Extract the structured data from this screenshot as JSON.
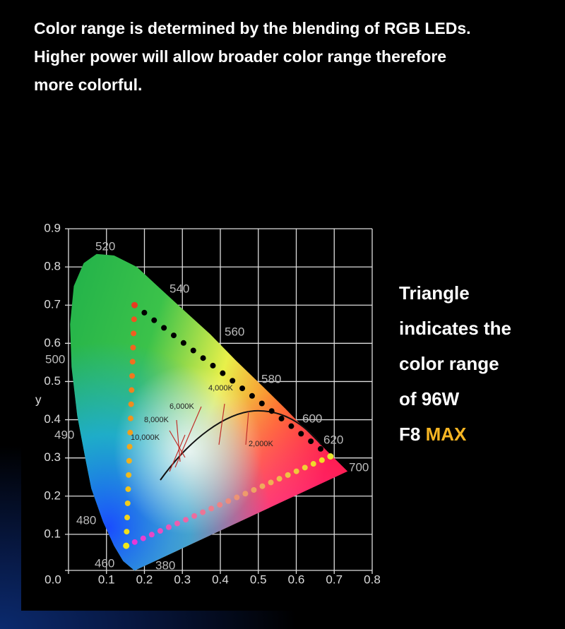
{
  "heading": [
    "Color range is determined by the blending of RGB LEDs.",
    "Higher power will allow broader color range therefore",
    "more colorful."
  ],
  "side_text": {
    "lines": [
      "Triangle",
      "indicates the",
      "color range",
      "of 96W"
    ],
    "model": "F8",
    "highlight": "MAX"
  },
  "chart_data": {
    "type": "scatter",
    "y_label": "y",
    "xlim": [
      0,
      0.8
    ],
    "ylim": [
      0,
      0.9
    ],
    "xticks": [
      {
        "value": 0,
        "label": "0.0"
      },
      0.1,
      0.2,
      0.3,
      0.4,
      0.5,
      0.6,
      0.7,
      0.8
    ],
    "yticks": [
      0.1,
      0.2,
      0.3,
      0.4,
      0.5,
      0.6,
      0.7,
      0.8,
      0.9
    ],
    "grid": true,
    "wavelength_labels": [
      "520",
      "540",
      "560",
      "580",
      "600",
      "620",
      "700",
      "500",
      "490",
      "480",
      "460",
      "380"
    ],
    "cct_labels": [
      "4,000K",
      "6,000K",
      "8,000K",
      "10,000K",
      "2,000K"
    ],
    "series": [
      {
        "name": "Triangle",
        "x": [
          0.69,
          0.174,
          0.152
        ],
        "y": [
          0.304,
          0.7,
          0.07
        ]
      }
    ]
  }
}
